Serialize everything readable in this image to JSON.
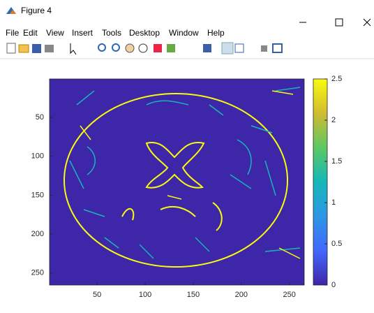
{
  "window": {
    "title": "Figure 4",
    "menu": [
      "File",
      "Edit",
      "View",
      "Insert",
      "Tools",
      "Desktop",
      "Window",
      "Help"
    ]
  },
  "chart_data": {
    "type": "image",
    "xlim": [
      0.5,
      265.5
    ],
    "ylim": [
      0.5,
      265.5
    ],
    "xticks": [
      50,
      100,
      150,
      200,
      250
    ],
    "yticks": [
      50,
      100,
      150,
      200,
      250
    ],
    "colorbar": {
      "clim": [
        0,
        2.5
      ],
      "ticks": [
        0,
        0.5,
        1,
        1.5,
        2,
        2.5
      ],
      "colors": [
        "#3e26a8",
        "#4367fd",
        "#2d96e5",
        "#16b7ba",
        "#5cc863",
        "#d1bb32",
        "#f9fb0e"
      ]
    }
  }
}
